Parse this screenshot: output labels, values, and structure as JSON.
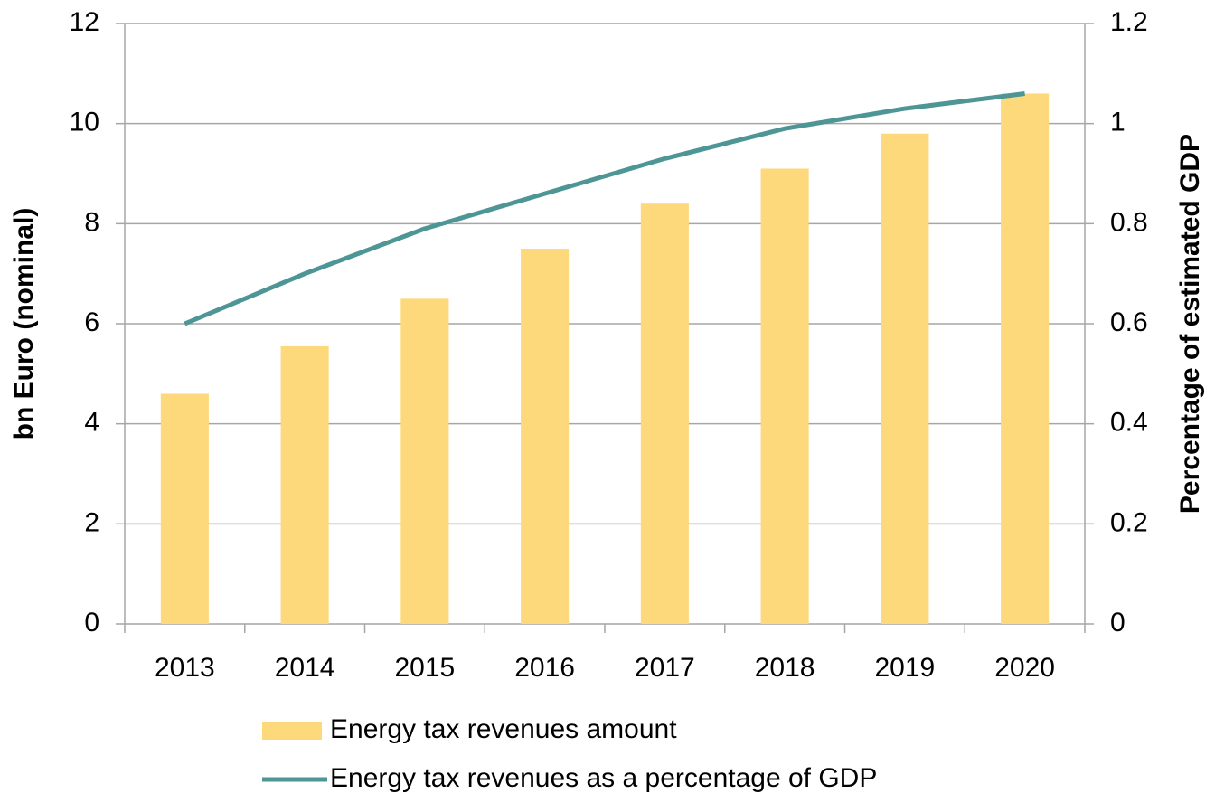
{
  "chart_data": {
    "type": "bar_line",
    "categories": [
      "2013",
      "2014",
      "2015",
      "2016",
      "2017",
      "2018",
      "2019",
      "2020"
    ],
    "series": [
      {
        "name": "Energy tax revenues amount",
        "type": "bar",
        "color": "#fdd97c",
        "values": [
          4.6,
          5.55,
          6.5,
          7.5,
          8.4,
          9.1,
          9.8,
          10.6
        ]
      },
      {
        "name": "Energy tax revenues as a percentage of GDP",
        "type": "line",
        "axis": "y2",
        "color": "#4e9696",
        "values": [
          0.6,
          0.7,
          0.79,
          0.86,
          0.93,
          0.99,
          1.03,
          1.06
        ]
      }
    ],
    "y_label": "bn Euro (nominal)",
    "y2_label": "Percentage of estimated GDP",
    "ylim": [
      0,
      12
    ],
    "yticks": [
      0,
      2,
      4,
      6,
      8,
      10,
      12
    ],
    "y2lim": [
      0,
      1.2
    ],
    "y2ticks": [
      0,
      0.2,
      0.4,
      0.6,
      0.8,
      1,
      1.2
    ],
    "grid": true,
    "legend": "bottom"
  }
}
